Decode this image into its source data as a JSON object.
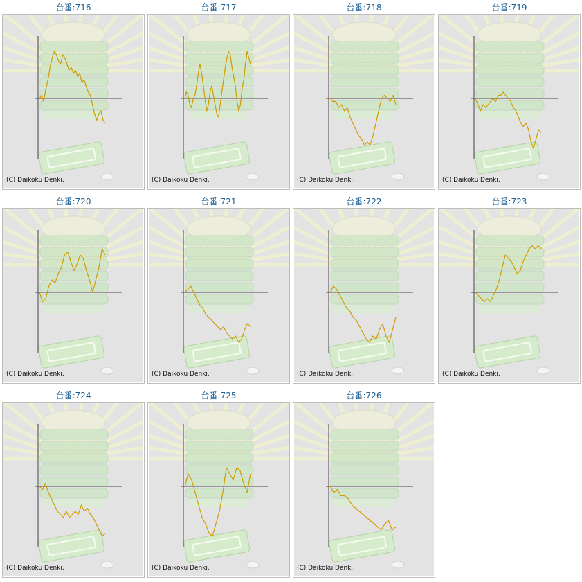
{
  "copyright": "(C) Daikoku Denki.",
  "colors": {
    "line": "#d29a00",
    "label": "#1a5f95",
    "panel_bg": "#e3e3e3",
    "axis": "#444444"
  },
  "chart_data": [
    {
      "type": "line",
      "title": "台番:716",
      "y": [
        0,
        0.5,
        -0.5,
        1.5,
        3,
        5,
        6.5,
        7.5,
        7,
        6,
        5.5,
        7,
        6.5,
        5.5,
        4.5,
        5,
        4,
        4.5,
        3.5,
        4,
        2.5,
        3,
        2,
        1,
        0.5,
        -1,
        -2.5,
        -3.5,
        -2.5,
        -2,
        -3.5,
        -4
      ]
    },
    {
      "type": "line",
      "title": "台番:717",
      "y": [
        0,
        1,
        0.5,
        -1,
        -1.5,
        0,
        0.5,
        2,
        4,
        5.5,
        4,
        2,
        0,
        -2,
        -1,
        1,
        2,
        0.5,
        -1,
        -2.5,
        -3,
        -1,
        1,
        3,
        5,
        6.5,
        7.5,
        7,
        5,
        3.5,
        2,
        -0.5,
        -2,
        -1,
        1.5,
        3,
        5.5,
        7.5,
        6.5,
        5.5
      ]
    },
    {
      "type": "line",
      "title": "台番:718",
      "y": [
        0,
        -0.5,
        -0.5,
        -1.5,
        -1,
        -2,
        -1.5,
        -3,
        -4,
        -5,
        -6,
        -6.5,
        -7.5,
        -7,
        -7.5,
        -6,
        -4,
        -2,
        0,
        0.5,
        0,
        -0.5,
        0.5,
        -1
      ]
    },
    {
      "type": "line",
      "title": "台番:719",
      "y": [
        0,
        -1,
        -2,
        -1,
        -1.5,
        -1,
        -0.5,
        0,
        -0.5,
        0.5,
        0.5,
        1,
        0.5,
        0,
        -0.5,
        -1.5,
        -2,
        -3,
        -4,
        -4.5,
        -4,
        -5,
        -7,
        -8,
        -6.5,
        -5,
        -5.5
      ]
    },
    {
      "type": "line",
      "title": "台番:720",
      "y": [
        0,
        -1.5,
        -1,
        1,
        2,
        1.5,
        3,
        4,
        6,
        6.5,
        5,
        3.5,
        4.5,
        6,
        5.5,
        3.5,
        2,
        0,
        2,
        4,
        7,
        6
      ]
    },
    {
      "type": "line",
      "title": "台番:721",
      "y": [
        0,
        0.5,
        1,
        0,
        -1,
        -2,
        -2.5,
        -3.5,
        -4,
        -4.5,
        -5,
        -5.5,
        -6,
        -5.5,
        -6.5,
        -7,
        -7.5,
        -7,
        -8,
        -7.5,
        -6,
        -5,
        -5.5
      ]
    },
    {
      "type": "line",
      "title": "台番:722",
      "y": [
        0,
        1,
        0.5,
        -0.5,
        -1.5,
        -2.5,
        -3,
        -4,
        -4.5,
        -5.5,
        -6.5,
        -7.5,
        -8,
        -7,
        -7.5,
        -6,
        -5,
        -7,
        -8,
        -6,
        -4
      ]
    },
    {
      "type": "line",
      "title": "台番:723",
      "y": [
        0,
        -0.5,
        -1,
        -1.5,
        -1,
        -1.5,
        -0.5,
        0.5,
        2,
        4,
        6,
        5.5,
        5,
        4,
        3,
        3.5,
        5,
        6,
        7,
        7.5,
        7,
        7.5,
        7
      ]
    },
    {
      "type": "line",
      "title": "台番:724",
      "y": [
        0,
        -0.5,
        0.5,
        -1,
        -2,
        -3,
        -4,
        -4.5,
        -5,
        -4,
        -5,
        -4.5,
        -4,
        -4.5,
        -3,
        -4,
        -3.5,
        -4.5,
        -5,
        -6,
        -7,
        -8,
        -7.5
      ]
    },
    {
      "type": "line",
      "title": "台番:725",
      "y": [
        0,
        2,
        1,
        -1,
        -3,
        -5,
        -6,
        -7.5,
        -8,
        -6,
        -4,
        -1,
        3,
        2,
        1,
        3,
        2.5,
        0.5,
        -1,
        2
      ]
    },
    {
      "type": "line",
      "title": "台番:726",
      "y": [
        0,
        -1,
        -0.5,
        -1.5,
        -1.5,
        -2,
        -3,
        -3.5,
        -4,
        -4.5,
        -5,
        -5.5,
        -6,
        -6.5,
        -7,
        -6,
        -5.5,
        -7,
        -6.5
      ]
    }
  ]
}
